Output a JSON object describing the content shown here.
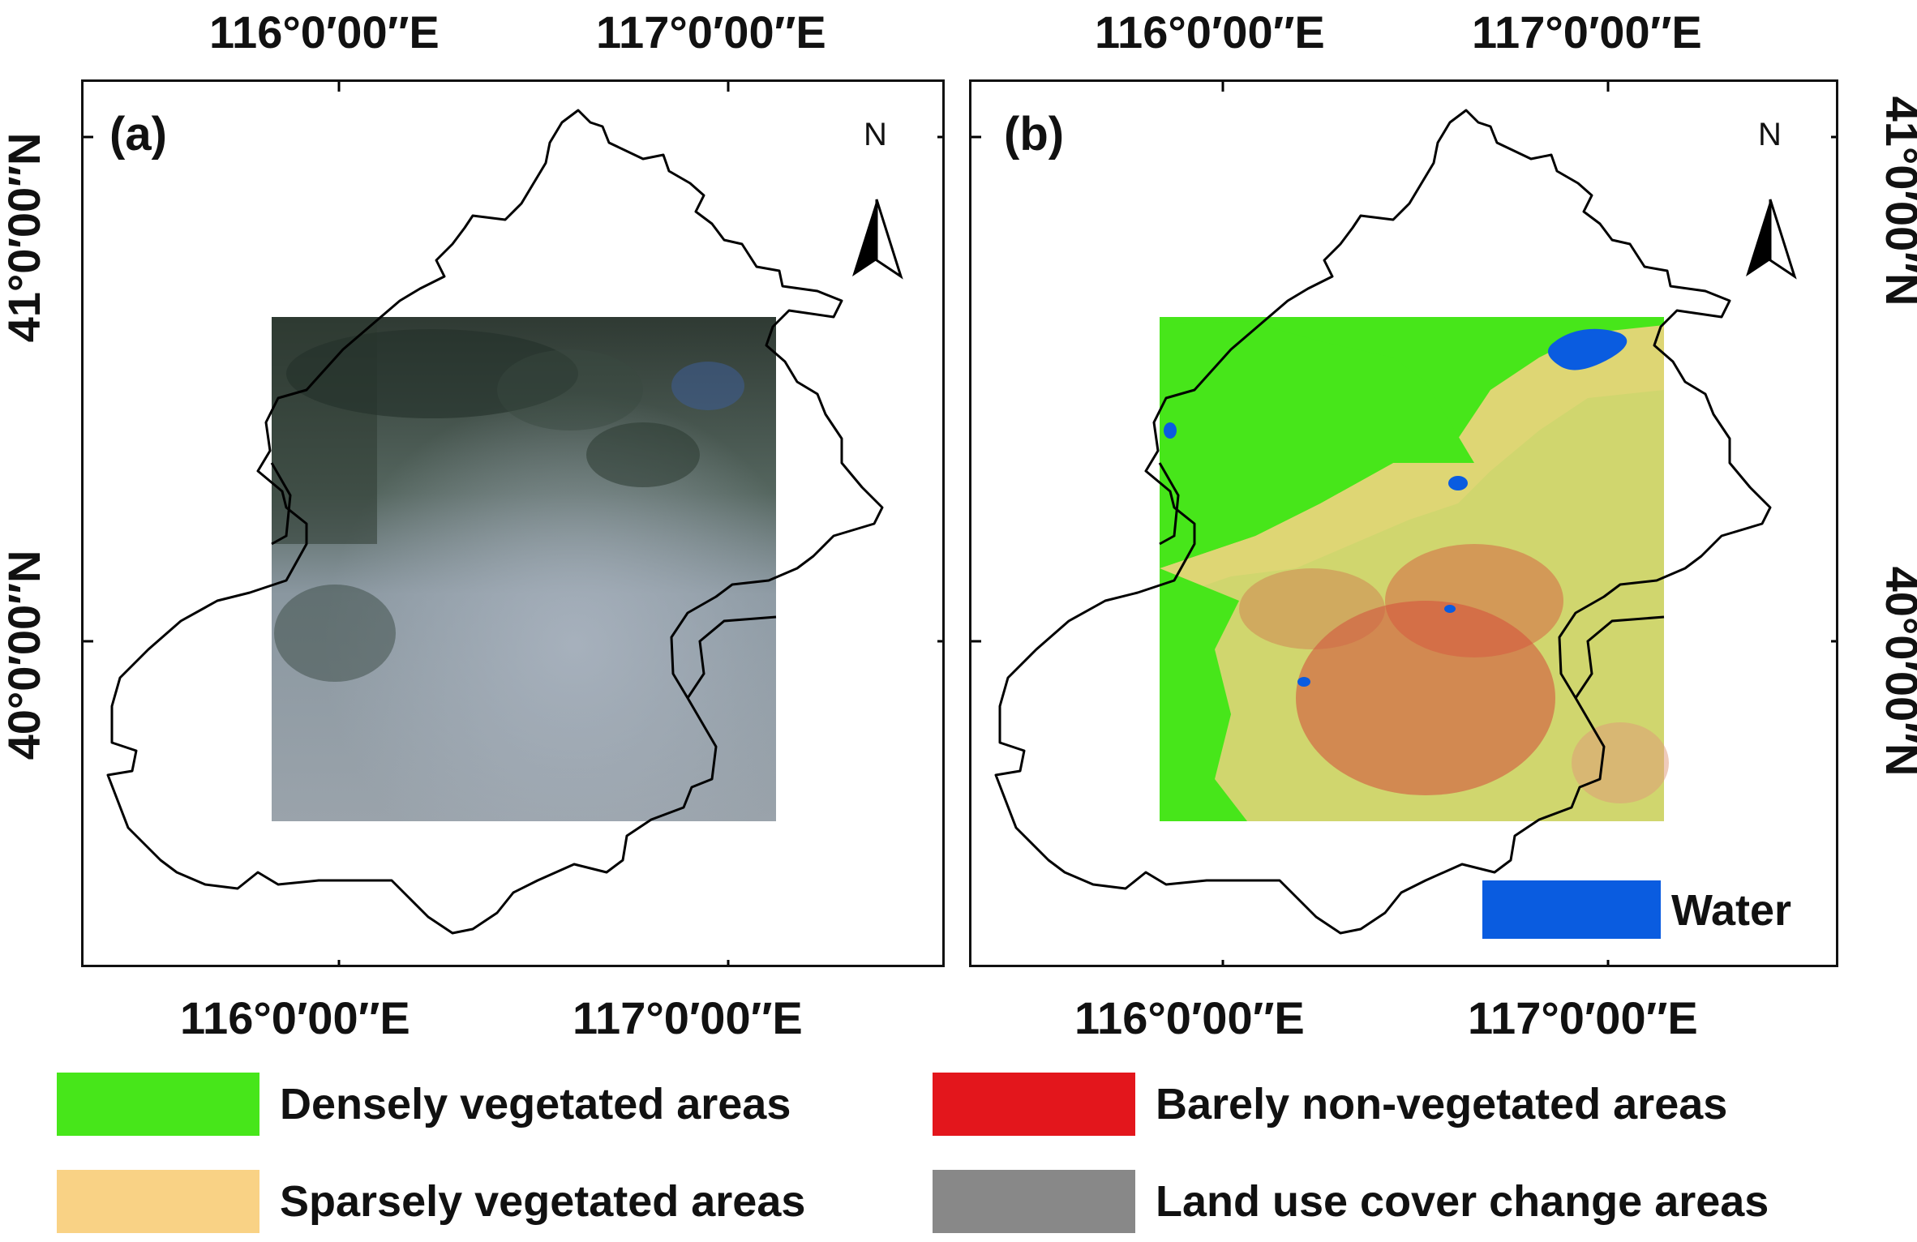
{
  "panels": [
    {
      "letter": "(a)",
      "north_label": "N"
    },
    {
      "letter": "(b)",
      "north_label": "N",
      "inset_legend": {
        "label": "Water",
        "color": "#0a5ce0"
      }
    }
  ],
  "axes": {
    "lon_ticks": [
      "116°0′00″E",
      "117°0′00″E"
    ],
    "lat_ticks": [
      "41°0′00″N",
      "40°0′00″N"
    ]
  },
  "legend": [
    {
      "label": "Densely vegetated areas",
      "color": "#47e61a"
    },
    {
      "label": "Barely non-vegetated areas",
      "color": "#e3161c"
    },
    {
      "label": "Sparsely vegetated areas",
      "color": "#f9d285"
    },
    {
      "label": "Land use cover change areas",
      "color": "#888888"
    }
  ],
  "icons": [
    "north-arrow-icon"
  ]
}
